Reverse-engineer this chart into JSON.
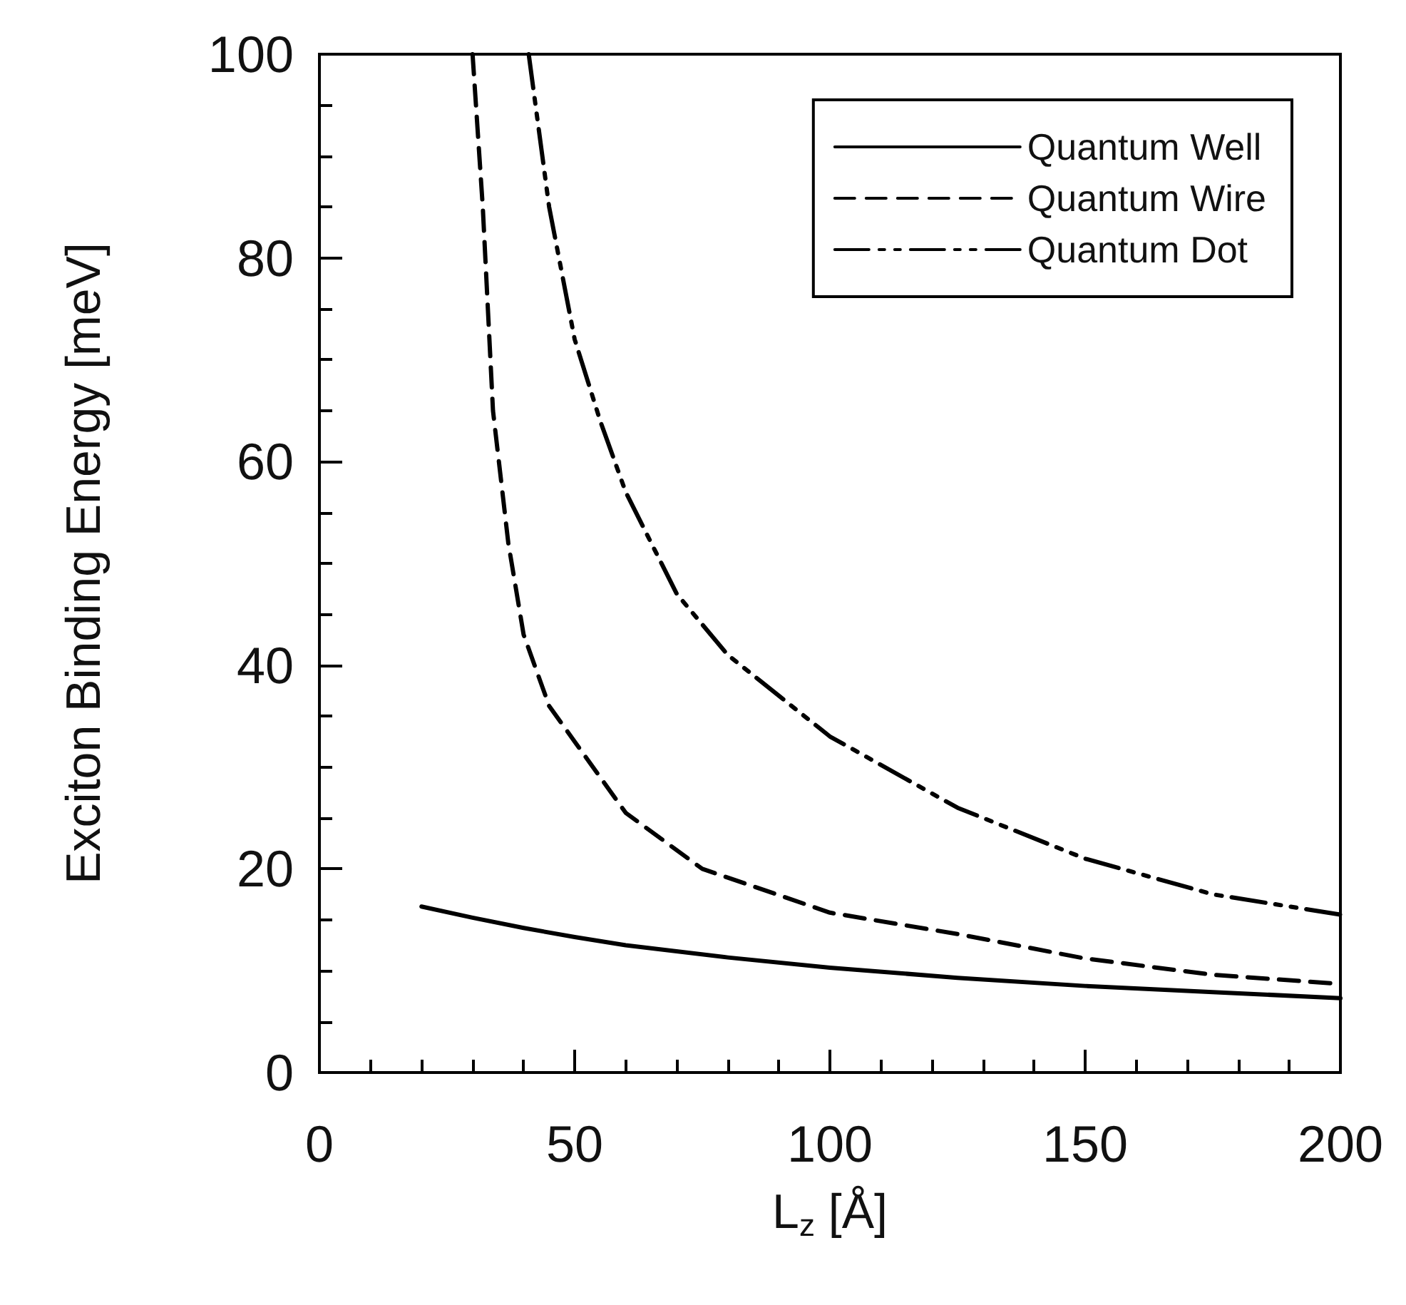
{
  "chart_data": {
    "type": "line",
    "xlabel": "L$_{z}$ [Å]",
    "ylabel": "Exciton Binding Energy [meV]",
    "xlim": [
      0,
      200
    ],
    "xticks": [
      0,
      50,
      100,
      150,
      200
    ],
    "ylim": [
      0,
      100
    ],
    "yticks": [
      0,
      20,
      40,
      60,
      80,
      100
    ],
    "grid": false,
    "legend": "top right",
    "marker": "none",
    "series": [
      {
        "name": "Quantum Well",
        "color": "#000000",
        "line_style": "solid",
        "x": [
          20,
          30,
          40,
          50,
          60,
          80,
          100,
          125,
          150,
          175,
          200
        ],
        "values": [
          16.3,
          15.2,
          14.2,
          13.3,
          12.5,
          11.3,
          10.3,
          9.3,
          8.5,
          7.9,
          7.3
        ]
      },
      {
        "name": "Quantum Wire",
        "color": "#000000",
        "line_style": "dashed",
        "x": [
          30,
          32,
          34,
          37,
          40,
          45,
          50,
          60,
          75,
          100,
          125,
          150,
          175,
          200
        ],
        "values": [
          100,
          85,
          65,
          52,
          43,
          36,
          32.5,
          25.5,
          20,
          15.7,
          13.6,
          11.2,
          9.6,
          8.7
        ]
      },
      {
        "name": "Quantum Dot",
        "color": "#000000",
        "line_style": "dotted",
        "x": [
          41,
          45,
          50,
          55,
          60,
          70,
          80,
          90,
          100,
          125,
          150,
          175,
          200
        ],
        "values": [
          100,
          85,
          72,
          64,
          57,
          47,
          41,
          37,
          33,
          26,
          21,
          17.5,
          15.5
        ]
      }
    ]
  }
}
